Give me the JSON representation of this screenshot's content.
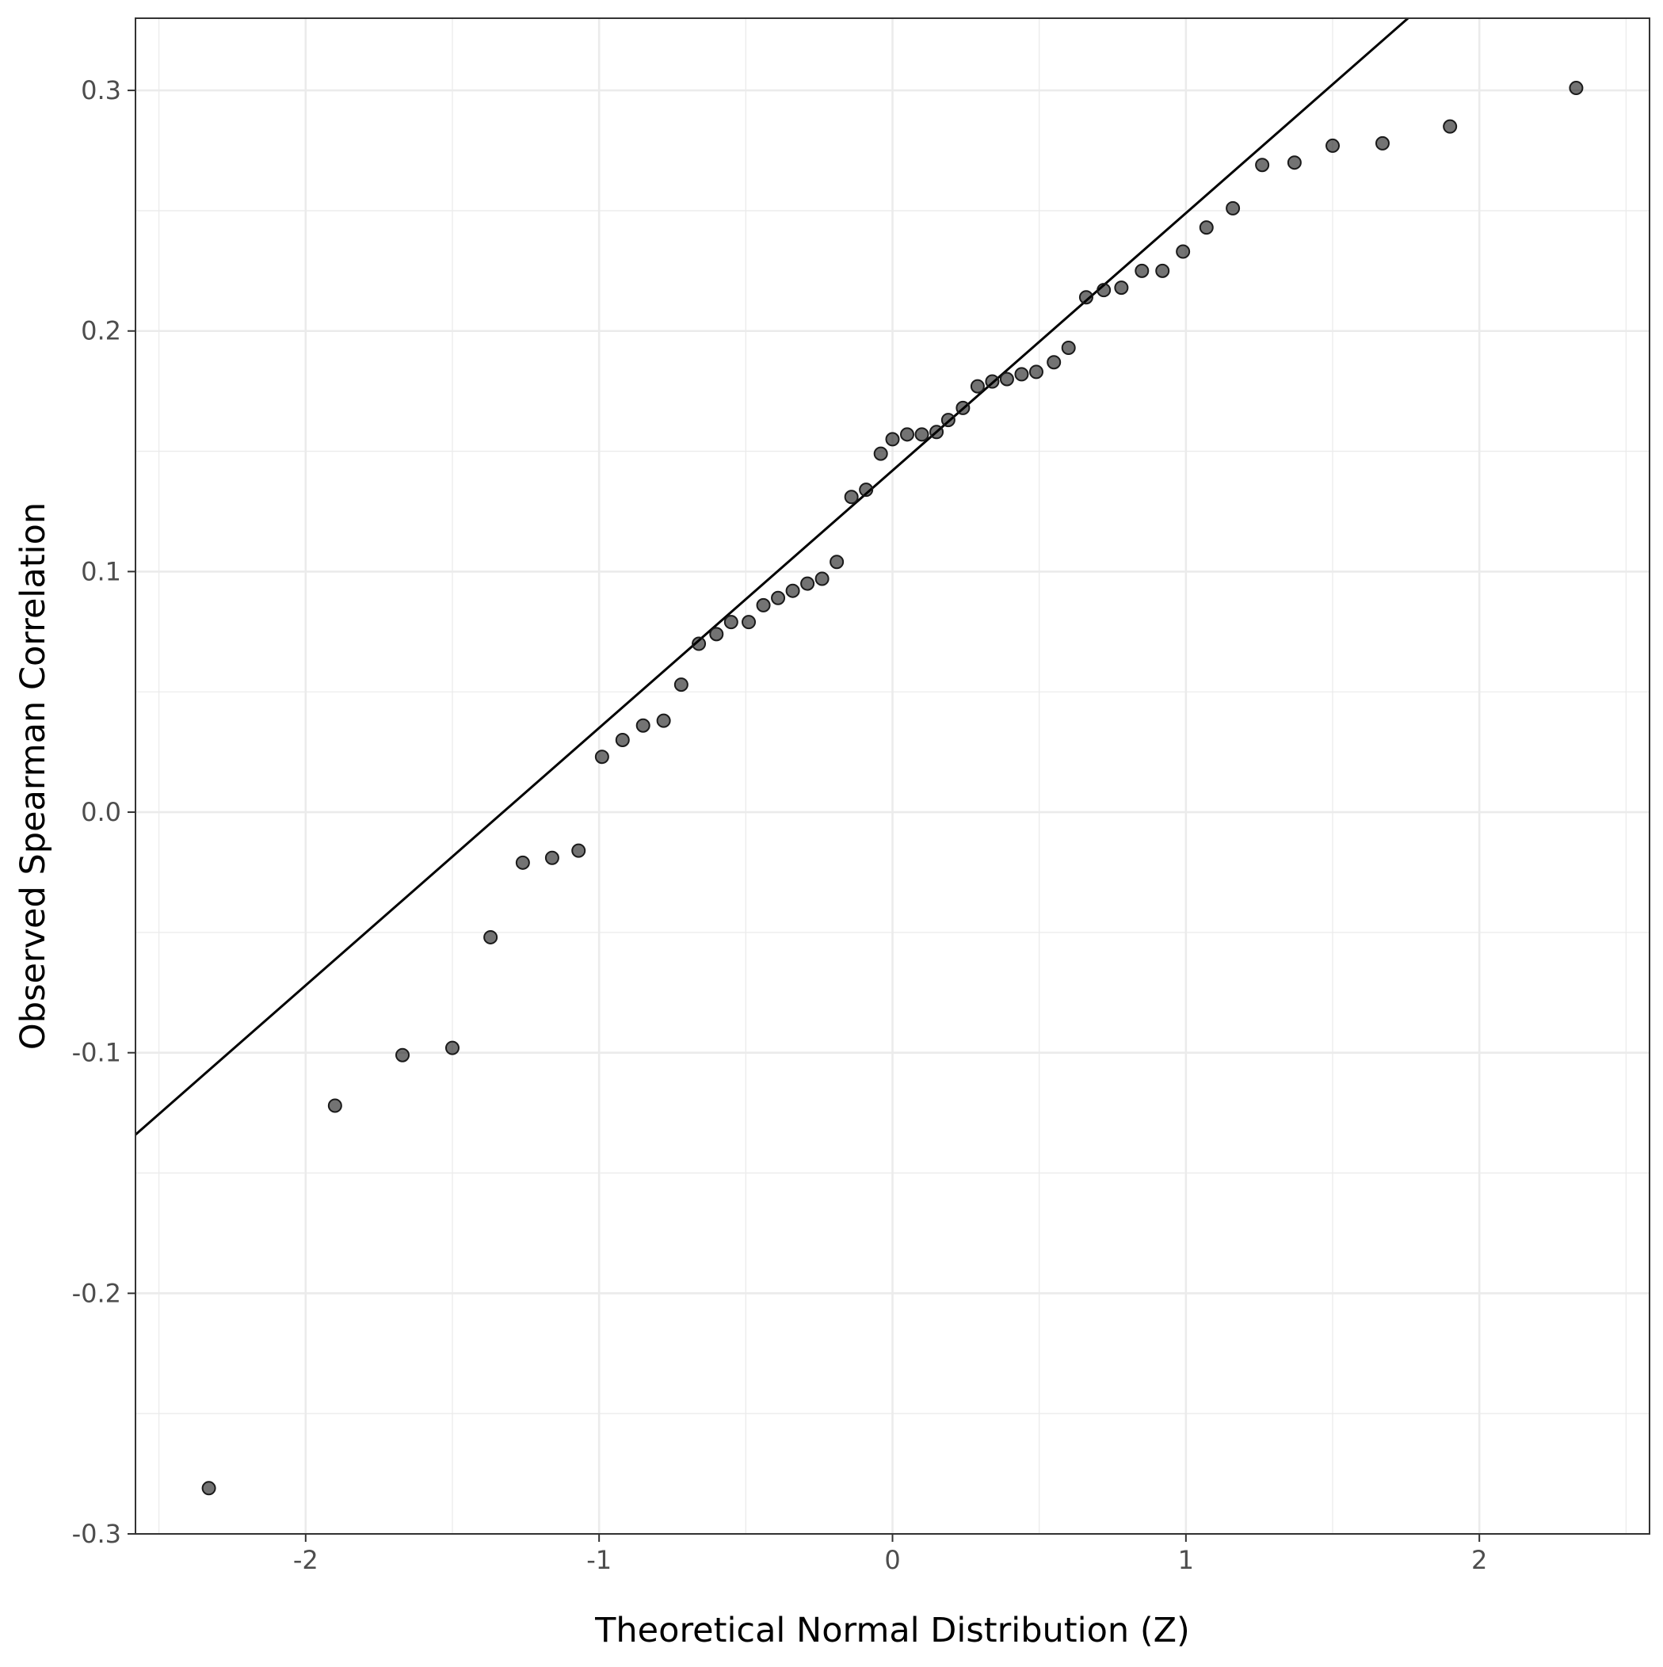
{
  "chart_data": {
    "type": "scatter",
    "title": "",
    "xlabel": "Theoretical Normal Distribution (Z)",
    "ylabel": "Observed Spearman Correlation",
    "xlim": [
      -2.58,
      2.58
    ],
    "ylim": [
      -0.3,
      0.33
    ],
    "x_ticks": [
      -2,
      -1,
      0,
      1,
      2
    ],
    "x_tick_labels": [
      "-2",
      "-1",
      "0",
      "1",
      "2"
    ],
    "y_ticks": [
      -0.3,
      -0.2,
      -0.1,
      0.0,
      0.1,
      0.2,
      0.3
    ],
    "y_tick_labels": [
      "-0.3",
      "-0.2",
      "-0.1",
      "0.0",
      "0.1",
      "0.2",
      "0.3"
    ],
    "grid": true,
    "reference_line": {
      "intercept": 0.142,
      "slope": 0.107
    },
    "points": [
      {
        "x": -2.33,
        "y": -0.281
      },
      {
        "x": -1.9,
        "y": -0.122
      },
      {
        "x": -1.67,
        "y": -0.101
      },
      {
        "x": -1.5,
        "y": -0.098
      },
      {
        "x": -1.37,
        "y": -0.052
      },
      {
        "x": -1.26,
        "y": -0.021
      },
      {
        "x": -1.16,
        "y": -0.019
      },
      {
        "x": -1.07,
        "y": -0.016
      },
      {
        "x": -0.99,
        "y": 0.023
      },
      {
        "x": -0.92,
        "y": 0.03
      },
      {
        "x": -0.85,
        "y": 0.036
      },
      {
        "x": -0.78,
        "y": 0.038
      },
      {
        "x": -0.72,
        "y": 0.053
      },
      {
        "x": -0.66,
        "y": 0.07
      },
      {
        "x": -0.6,
        "y": 0.074
      },
      {
        "x": -0.55,
        "y": 0.079
      },
      {
        "x": -0.49,
        "y": 0.079
      },
      {
        "x": -0.44,
        "y": 0.086
      },
      {
        "x": -0.39,
        "y": 0.089
      },
      {
        "x": -0.34,
        "y": 0.092
      },
      {
        "x": -0.29,
        "y": 0.095
      },
      {
        "x": -0.24,
        "y": 0.097
      },
      {
        "x": -0.19,
        "y": 0.104
      },
      {
        "x": -0.14,
        "y": 0.131
      },
      {
        "x": -0.09,
        "y": 0.134
      },
      {
        "x": -0.04,
        "y": 0.149
      },
      {
        "x": 0.0,
        "y": 0.155
      },
      {
        "x": 0.05,
        "y": 0.157
      },
      {
        "x": 0.1,
        "y": 0.157
      },
      {
        "x": 0.15,
        "y": 0.158
      },
      {
        "x": 0.19,
        "y": 0.163
      },
      {
        "x": 0.24,
        "y": 0.168
      },
      {
        "x": 0.29,
        "y": 0.177
      },
      {
        "x": 0.34,
        "y": 0.179
      },
      {
        "x": 0.39,
        "y": 0.18
      },
      {
        "x": 0.44,
        "y": 0.182
      },
      {
        "x": 0.49,
        "y": 0.183
      },
      {
        "x": 0.55,
        "y": 0.187
      },
      {
        "x": 0.6,
        "y": 0.193
      },
      {
        "x": 0.66,
        "y": 0.214
      },
      {
        "x": 0.72,
        "y": 0.217
      },
      {
        "x": 0.78,
        "y": 0.218
      },
      {
        "x": 0.85,
        "y": 0.225
      },
      {
        "x": 0.92,
        "y": 0.225
      },
      {
        "x": 0.99,
        "y": 0.233
      },
      {
        "x": 1.07,
        "y": 0.243
      },
      {
        "x": 1.16,
        "y": 0.251
      },
      {
        "x": 1.26,
        "y": 0.269
      },
      {
        "x": 1.37,
        "y": 0.27
      },
      {
        "x": 1.5,
        "y": 0.277
      },
      {
        "x": 1.67,
        "y": 0.278
      },
      {
        "x": 1.9,
        "y": 0.285
      },
      {
        "x": 2.33,
        "y": 0.301
      }
    ]
  }
}
